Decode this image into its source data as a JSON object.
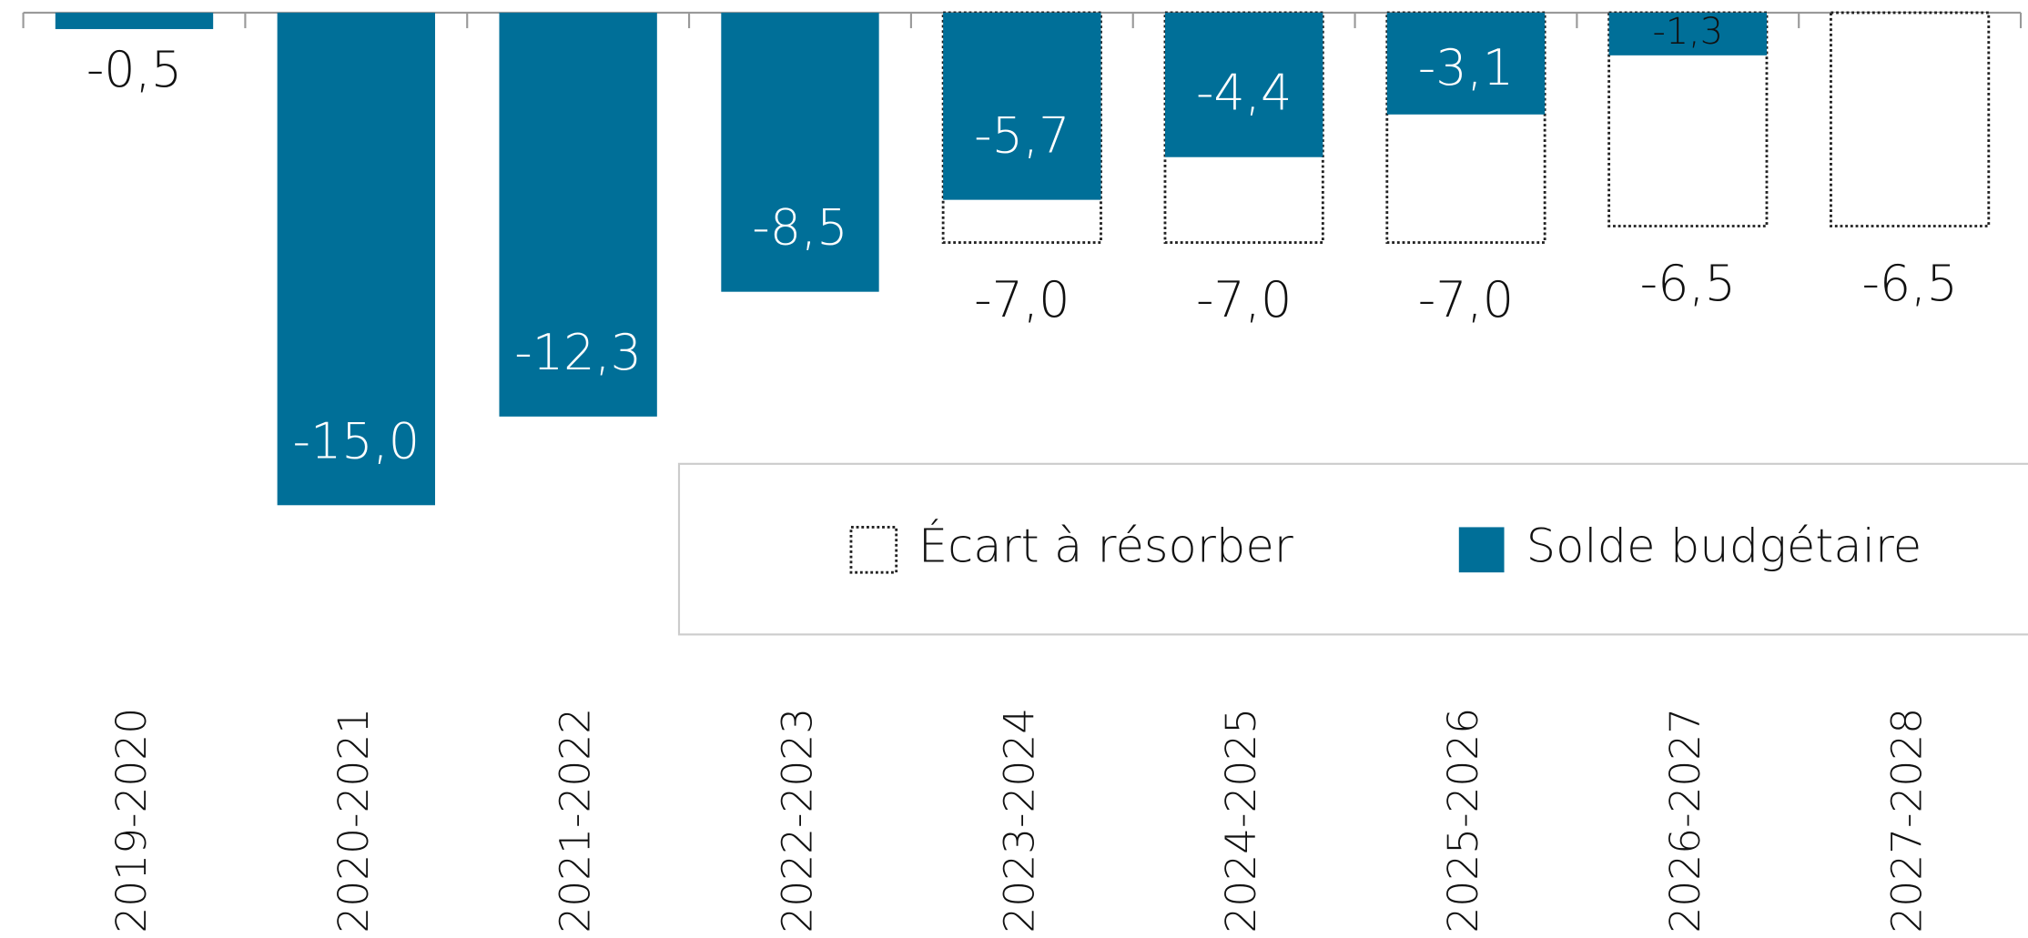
{
  "chart_data": {
    "type": "bar",
    "categories": [
      "2019-2020",
      "2020-2021",
      "2021-2022",
      "2022-2023",
      "2023-2024",
      "2024-2025",
      "2025-2026",
      "2026-2027",
      "2027-2028"
    ],
    "series": [
      {
        "name": "Écart à résorber",
        "color": "#ffffff",
        "style": "dotted-outline",
        "values": [
          null,
          null,
          null,
          null,
          -7.0,
          -7.0,
          -7.0,
          -6.5,
          -6.5
        ],
        "value_labels": [
          null,
          null,
          null,
          null,
          "-7,0",
          "-7,0",
          "-7,0",
          "-6,5",
          "-6,5"
        ]
      },
      {
        "name": "Solde budgétaire",
        "color": "#006f98",
        "values": [
          -0.5,
          -15.0,
          -12.3,
          -8.5,
          -5.7,
          -4.4,
          -3.1,
          -1.3,
          null
        ],
        "value_labels": [
          "-0,5",
          "-15,0",
          "-12,3",
          "-8,5",
          "-5,7",
          "-4,4",
          "-3,1",
          "-1,3",
          null
        ]
      }
    ],
    "ylim": [
      -15,
      0
    ],
    "legend": "bottom-right"
  }
}
